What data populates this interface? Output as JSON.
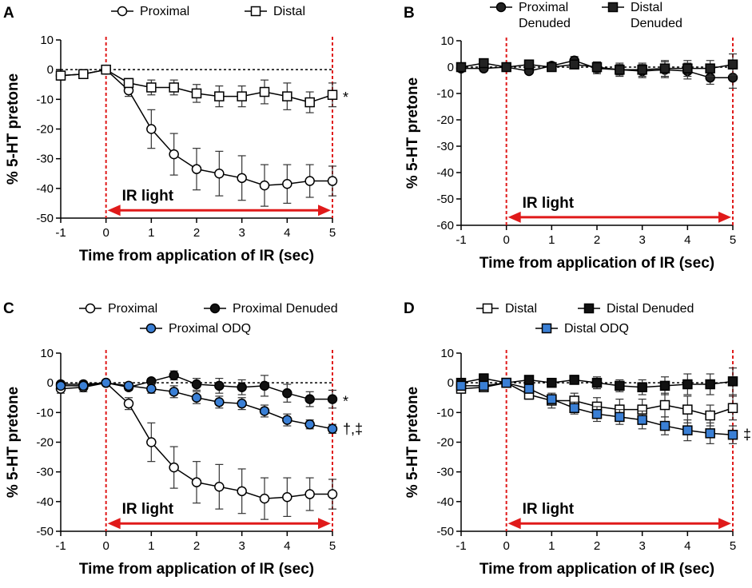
{
  "chart_data": [
    {
      "type": "line",
      "panel": "A",
      "xlabel": "Time from application of IR (sec)",
      "ylabel": "% 5-HT pretone",
      "xlim": [
        -1,
        5
      ],
      "ylim": [
        -50,
        10
      ],
      "xticks": [
        "-1",
        "0",
        "1",
        "2",
        "3",
        "4",
        "5"
      ],
      "yticks": [
        "10",
        "0",
        "-10",
        "-20",
        "-30",
        "-40",
        "-50"
      ],
      "annotation": "IR light",
      "legend": [
        "Proximal",
        "Distal"
      ],
      "x": [
        -1,
        -0.5,
        0,
        0.5,
        1,
        1.5,
        2,
        2.5,
        3,
        3.5,
        4,
        4.5,
        5
      ],
      "series": [
        {
          "name": "Proximal",
          "marker": "circle",
          "fill": "#ffffff",
          "values": [
            -2,
            -1.5,
            0,
            -7,
            -20,
            -28.5,
            -33.5,
            -35,
            -36.5,
            -39,
            -38.5,
            -37.5,
            -37.5
          ],
          "errors": [
            1.5,
            1.5,
            0.5,
            2,
            6.5,
            7,
            7,
            7.5,
            7.5,
            7,
            6.5,
            5.5,
            5
          ]
        },
        {
          "name": "Distal",
          "marker": "square",
          "fill": "#ffffff",
          "values": [
            -2,
            -1.5,
            0,
            -4.5,
            -6,
            -6,
            -8,
            -9,
            -9,
            -7.5,
            -9,
            -11,
            -8.5
          ],
          "errors": [
            1,
            1,
            0.5,
            1.5,
            2.5,
            2.5,
            3,
            3.5,
            3.5,
            4,
            4.5,
            3.5,
            4
          ],
          "significance": "*"
        }
      ]
    },
    {
      "type": "line",
      "panel": "B",
      "xlabel": "Time from application of IR (sec)",
      "ylabel": "% 5-HT pretone",
      "xlim": [
        -1,
        5
      ],
      "ylim": [
        -60,
        10
      ],
      "xticks": [
        "-1",
        "0",
        "1",
        "2",
        "3",
        "4",
        "5"
      ],
      "yticks": [
        "10",
        "0",
        "-10",
        "-20",
        "-30",
        "-40",
        "-50",
        "-60"
      ],
      "annotation": "IR light",
      "legend": [
        "Proximal Denuded",
        "Distal Denuded"
      ],
      "x": [
        -1,
        -0.5,
        0,
        0.5,
        1,
        1.5,
        2,
        2.5,
        3,
        3.5,
        4,
        4.5,
        5
      ],
      "series": [
        {
          "name": "Proximal Denuded",
          "marker": "circle",
          "fill": "#222222",
          "values": [
            -0.5,
            -0.5,
            0,
            -1.5,
            0.5,
            2.5,
            -0.5,
            -1,
            -1.5,
            -1,
            -1.5,
            -4,
            -4
          ],
          "errors": [
            1,
            1,
            0.5,
            1,
            1,
            1.5,
            2,
            2.5,
            2.5,
            3,
            3,
            2.5,
            4
          ]
        },
        {
          "name": "Distal Denuded",
          "marker": "square",
          "fill": "#222222",
          "values": [
            0,
            1.5,
            0,
            1,
            0,
            1,
            0,
            -1,
            -1,
            -0.5,
            -0.5,
            -0.5,
            1
          ],
          "errors": [
            1,
            1.5,
            0.5,
            1,
            1,
            1.5,
            2,
            2,
            2.5,
            3,
            3,
            3,
            4
          ]
        }
      ]
    },
    {
      "type": "line",
      "panel": "C",
      "xlabel": "Time from application of IR (sec)",
      "ylabel": "% 5-HT pretone",
      "xlim": [
        -1,
        5
      ],
      "ylim": [
        -50,
        10
      ],
      "xticks": [
        "-1",
        "0",
        "1",
        "2",
        "3",
        "4",
        "5"
      ],
      "yticks": [
        "10",
        "0",
        "-10",
        "-20",
        "-30",
        "-40",
        "-50"
      ],
      "annotation": "IR light",
      "legend": [
        "Proximal",
        "Proximal Denuded",
        "Proximal ODQ"
      ],
      "x": [
        -1,
        -0.5,
        0,
        0.5,
        1,
        1.5,
        2,
        2.5,
        3,
        3.5,
        4,
        4.5,
        5
      ],
      "series": [
        {
          "name": "Proximal",
          "marker": "circle",
          "fill": "#ffffff",
          "values": [
            -2,
            -1.5,
            0,
            -7,
            -20,
            -28.5,
            -33.5,
            -35,
            -36.5,
            -39,
            -38.5,
            -37.5,
            -37.5
          ],
          "errors": [
            1.5,
            1.5,
            0.5,
            2,
            6.5,
            7,
            7,
            7.5,
            7.5,
            7,
            6.5,
            5.5,
            5
          ]
        },
        {
          "name": "Proximal Denuded",
          "marker": "circle",
          "fill": "#111111",
          "values": [
            -0.5,
            -0.5,
            0,
            -1.5,
            0.5,
            2.5,
            -0.5,
            -1,
            -1.5,
            -1,
            -3.5,
            -5.5,
            -5.5
          ],
          "errors": [
            1,
            1,
            0.5,
            1,
            1,
            1.5,
            2,
            2.5,
            2.5,
            3.5,
            3,
            2.5,
            3
          ],
          "significance": "*"
        },
        {
          "name": "Proximal ODQ",
          "marker": "circle",
          "fill": "#3a7fd5",
          "values": [
            -1,
            -1,
            0,
            -1,
            -2,
            -3,
            -5,
            -6.5,
            -7,
            -9.5,
            -12.5,
            -14,
            -15.5
          ],
          "errors": [
            1,
            1,
            0.5,
            1,
            1.5,
            2,
            2,
            2,
            2,
            2,
            2,
            1.5,
            1.5
          ],
          "significance": "†,‡"
        }
      ]
    },
    {
      "type": "line",
      "panel": "D",
      "xlabel": "Time from application of IR (sec)",
      "ylabel": "% 5-HT pretone",
      "xlim": [
        -1,
        5
      ],
      "ylim": [
        -50,
        10
      ],
      "xticks": [
        "-1",
        "0",
        "1",
        "2",
        "3",
        "4",
        "5"
      ],
      "yticks": [
        "10",
        "0",
        "-10",
        "-20",
        "-30",
        "-40",
        "-50"
      ],
      "annotation": "IR light",
      "legend": [
        "Distal",
        "Distal Denuded",
        "Distal ODQ"
      ],
      "x": [
        -1,
        -0.5,
        0,
        0.5,
        1,
        1.5,
        2,
        2.5,
        3,
        3.5,
        4,
        4.5,
        5
      ],
      "series": [
        {
          "name": "Distal",
          "marker": "square",
          "fill": "#ffffff",
          "values": [
            -2,
            -1.5,
            0,
            -4,
            -6,
            -6,
            -8,
            -9,
            -9,
            -7.5,
            -9,
            -11,
            -8.5
          ],
          "errors": [
            1,
            1,
            0.5,
            1.5,
            2.5,
            2.5,
            3,
            3.5,
            3.5,
            4,
            4.5,
            3.5,
            4
          ]
        },
        {
          "name": "Distal Denuded",
          "marker": "square",
          "fill": "#111111",
          "values": [
            0,
            1.5,
            0,
            1,
            0,
            1,
            0,
            -1,
            -1.5,
            -1,
            -0.5,
            -0.5,
            0.5
          ],
          "errors": [
            1,
            1.5,
            0.5,
            1,
            1,
            1.5,
            2,
            2,
            2.5,
            3,
            3.5,
            3.5,
            4.5
          ]
        },
        {
          "name": "Distal ODQ",
          "marker": "square",
          "fill": "#3a7fd5",
          "values": [
            -1,
            -1,
            0,
            -2,
            -5.5,
            -8.5,
            -10.5,
            -11.5,
            -12.5,
            -14.5,
            -16,
            -17,
            -17.5
          ],
          "errors": [
            1,
            1,
            0.5,
            1,
            1.5,
            2,
            2.5,
            2.5,
            3,
            3,
            3.5,
            3.5,
            3
          ],
          "significance": "‡"
        }
      ]
    }
  ]
}
